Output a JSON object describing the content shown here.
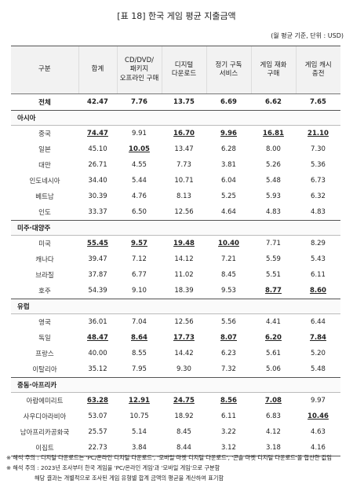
{
  "title": "[표 18] 한국 게임 평균 지출금액",
  "unit": "(월 평균 기준, 단위 : USD)",
  "table": {
    "header": [
      "구분",
      "합계",
      "CD/DVD/\n패키지\n오프라인 구매",
      "디지털\n다운로드",
      "정기 구독\n서비스",
      "게임 재화\n구매",
      "게임 캐시\n충전"
    ],
    "total": {
      "label": "전체",
      "values": [
        "42.47",
        "7.76",
        "13.75",
        "6.69",
        "6.62",
        "7.65"
      ]
    },
    "sections": [
      {
        "name": "아시아",
        "rows": [
          {
            "label": "중국",
            "values": [
              "74.47",
              "9.91",
              "16.70",
              "9.96",
              "16.81",
              "21.10"
            ],
            "underline": [
              0,
              2,
              3,
              4,
              5
            ]
          },
          {
            "label": "일본",
            "values": [
              "45.10",
              "10.05",
              "13.47",
              "6.28",
              "8.00",
              "7.30"
            ],
            "underline": [
              1
            ]
          },
          {
            "label": "대만",
            "values": [
              "26.71",
              "4.55",
              "7.73",
              "3.81",
              "5.26",
              "5.36"
            ],
            "underline": []
          },
          {
            "label": "인도네시아",
            "values": [
              "34.40",
              "5.44",
              "10.71",
              "6.04",
              "5.48",
              "6.73"
            ],
            "underline": []
          },
          {
            "label": "베트남",
            "values": [
              "30.39",
              "4.76",
              "8.13",
              "5.25",
              "5.93",
              "6.32"
            ],
            "underline": []
          },
          {
            "label": "인도",
            "values": [
              "33.37",
              "6.50",
              "12.56",
              "4.64",
              "4.83",
              "4.83"
            ],
            "underline": []
          }
        ]
      },
      {
        "name": "미주·대양주",
        "rows": [
          {
            "label": "미국",
            "values": [
              "55.45",
              "9.57",
              "19.48",
              "10.40",
              "7.71",
              "8.29"
            ],
            "underline": [
              0,
              1,
              2,
              3
            ]
          },
          {
            "label": "캐나다",
            "values": [
              "39.47",
              "7.12",
              "14.12",
              "7.21",
              "5.59",
              "5.43"
            ],
            "underline": []
          },
          {
            "label": "브라질",
            "values": [
              "37.87",
              "6.77",
              "11.02",
              "8.45",
              "5.51",
              "6.11"
            ],
            "underline": []
          },
          {
            "label": "호주",
            "values": [
              "54.39",
              "9.10",
              "18.39",
              "9.53",
              "8.77",
              "8.60"
            ],
            "underline": [
              4,
              5
            ]
          }
        ]
      },
      {
        "name": "유럽",
        "rows": [
          {
            "label": "영국",
            "values": [
              "36.01",
              "7.04",
              "12.56",
              "5.56",
              "4.41",
              "6.44"
            ],
            "underline": []
          },
          {
            "label": "독일",
            "values": [
              "48.47",
              "8.64",
              "17.73",
              "8.07",
              "6.20",
              "7.84"
            ],
            "underline": [
              0,
              1,
              2,
              3,
              4,
              5
            ]
          },
          {
            "label": "프랑스",
            "values": [
              "40.00",
              "8.55",
              "14.42",
              "6.23",
              "5.61",
              "5.20"
            ],
            "underline": []
          },
          {
            "label": "이탈리아",
            "values": [
              "35.12",
              "7.95",
              "9.30",
              "7.32",
              "5.06",
              "5.48"
            ],
            "underline": []
          }
        ]
      },
      {
        "name": "중동·아프리카",
        "rows": [
          {
            "label": "아랍에미리트",
            "values": [
              "63.28",
              "12.91",
              "24.75",
              "8.56",
              "7.08",
              "9.97"
            ],
            "underline": [
              0,
              1,
              2,
              3,
              4
            ]
          },
          {
            "label": "사우디아라비아",
            "values": [
              "53.07",
              "10.75",
              "18.92",
              "6.11",
              "6.83",
              "10.46"
            ],
            "underline": [
              5
            ]
          },
          {
            "label": "남아프리카공화국",
            "values": [
              "25.57",
              "5.14",
              "8.45",
              "3.22",
              "4.12",
              "4.63"
            ],
            "underline": []
          },
          {
            "label": "이집트",
            "values": [
              "22.73",
              "3.84",
              "8.44",
              "3.12",
              "3.18",
              "4.16"
            ],
            "underline": []
          }
        ]
      }
    ]
  },
  "notes": [
    "※ 해석 주의 : 디지털 다운로드는 'PC/온라인 디지털 다운로드', '모바일 마켓 디지털 다운로드', '콘솔 마켓 디지털 다운로드'을 합산한 값임",
    "※ 해석 주의 : 2023년 조사부터 한국 게임을 'PC/온라인 게임'과 '모바일 게임'으로 구분함",
    "해당 결과는 개별적으로 조사된 게임 유형별 합계 금액의 평균을 계산하여 표기함"
  ]
}
